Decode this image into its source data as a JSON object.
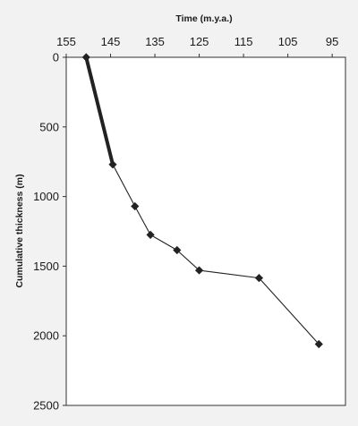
{
  "chart_data": {
    "type": "scatter",
    "title": "",
    "xlabel": "Time (m.y.a.)",
    "ylabel": "Cumulative thickness (m)",
    "x_axis_position": "top",
    "x_reversed": true,
    "y_reversed": true,
    "xlim": [
      155,
      92
    ],
    "ylim": [
      0,
      2500
    ],
    "xticks": [
      155,
      145,
      135,
      125,
      115,
      105,
      95
    ],
    "yticks": [
      0,
      500,
      1000,
      1500,
      2000,
      2500
    ],
    "grid": false,
    "series": [
      {
        "points": [
          {
            "x": 150.5,
            "y": 0
          },
          {
            "x": 144.5,
            "y": 770
          },
          {
            "x": 139.5,
            "y": 1070
          },
          {
            "x": 136,
            "y": 1275
          },
          {
            "x": 130,
            "y": 1385
          },
          {
            "x": 125,
            "y": 1530
          },
          {
            "x": 111.5,
            "y": 1585
          },
          {
            "x": 98,
            "y": 2060
          }
        ],
        "segment_widths": [
          "thick",
          "thin",
          "thin",
          "thin",
          "thin",
          "thin",
          "thin"
        ],
        "color": "#222222",
        "marker": "diamond"
      }
    ]
  }
}
